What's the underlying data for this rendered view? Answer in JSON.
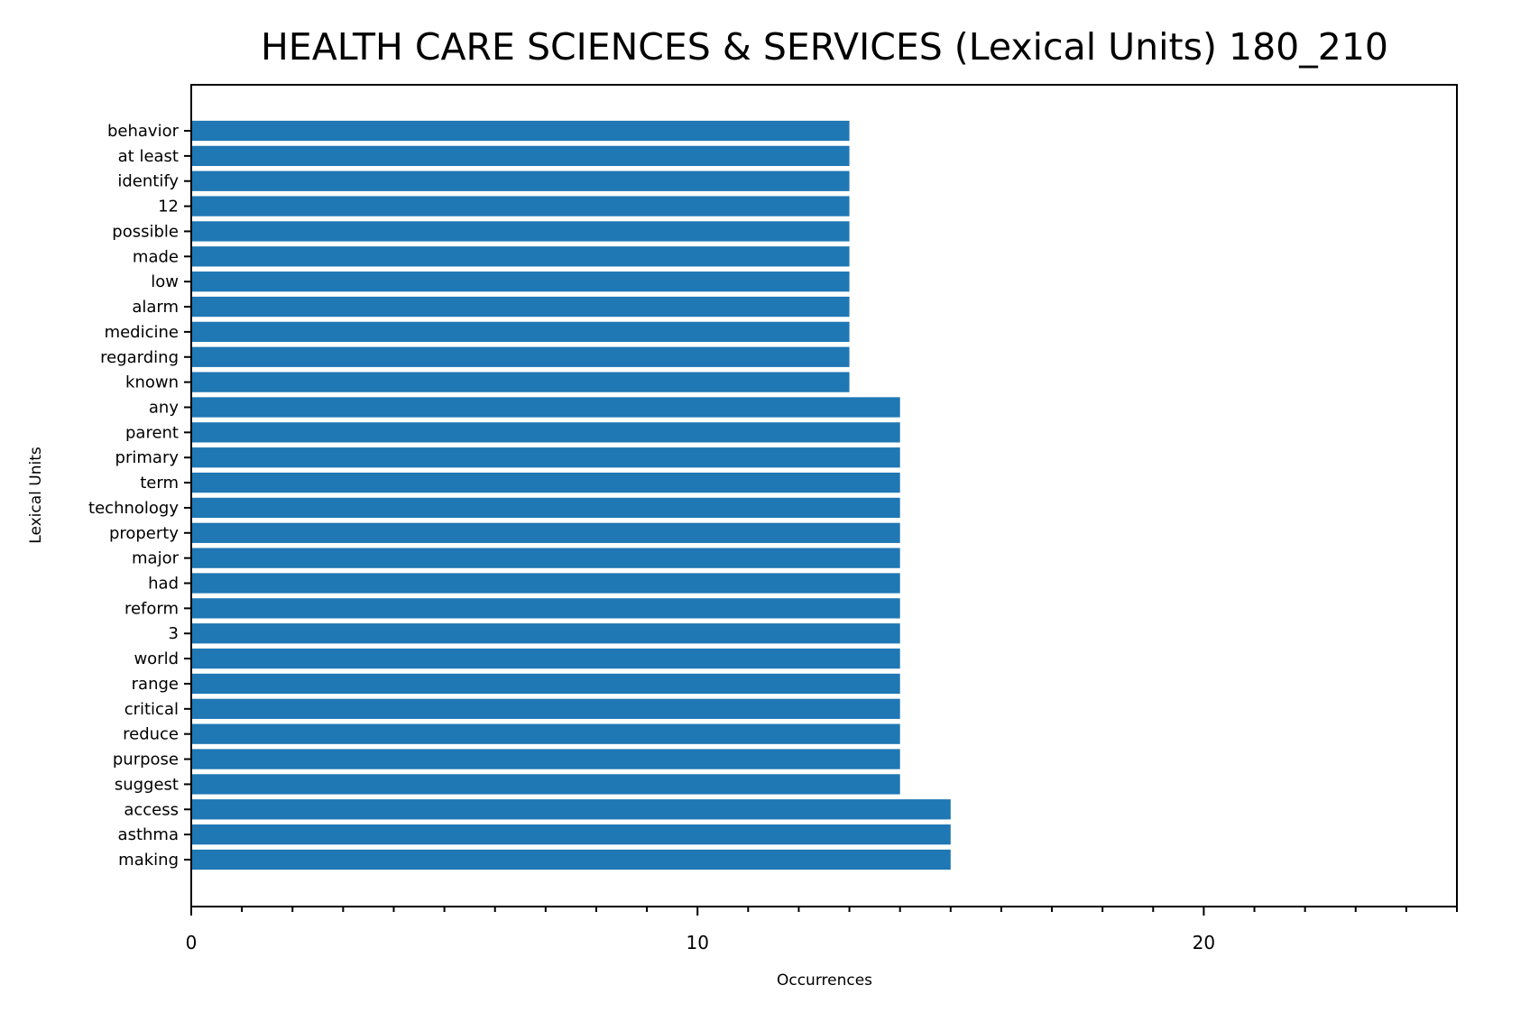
{
  "chart_data": {
    "type": "bar",
    "orientation": "horizontal",
    "title": "HEALTH CARE SCIENCES & SERVICES (Lexical Units) 180_210",
    "xlabel": "Occurrences",
    "ylabel": "Lexical Units",
    "categories": [
      "making",
      "asthma",
      "access",
      "suggest",
      "purpose",
      "reduce",
      "critical",
      "range",
      "world",
      "3",
      "reform",
      "had",
      "major",
      "property",
      "technology",
      "term",
      "primary",
      "parent",
      "any",
      "known",
      "regarding",
      "medicine",
      "alarm",
      "low",
      "made",
      "possible",
      "12",
      "identify",
      "at least",
      "behavior"
    ],
    "values": [
      15,
      15,
      15,
      14,
      14,
      14,
      14,
      14,
      14,
      14,
      14,
      14,
      14,
      14,
      14,
      14,
      14,
      14,
      14,
      13,
      13,
      13,
      13,
      13,
      13,
      13,
      13,
      13,
      13,
      13
    ],
    "xlim": [
      0,
      25
    ],
    "xticks": [
      0,
      10,
      20
    ],
    "xtick_labels": [
      "0",
      "10",
      "20"
    ],
    "grid": false,
    "bar_color": "#1f77b4"
  }
}
